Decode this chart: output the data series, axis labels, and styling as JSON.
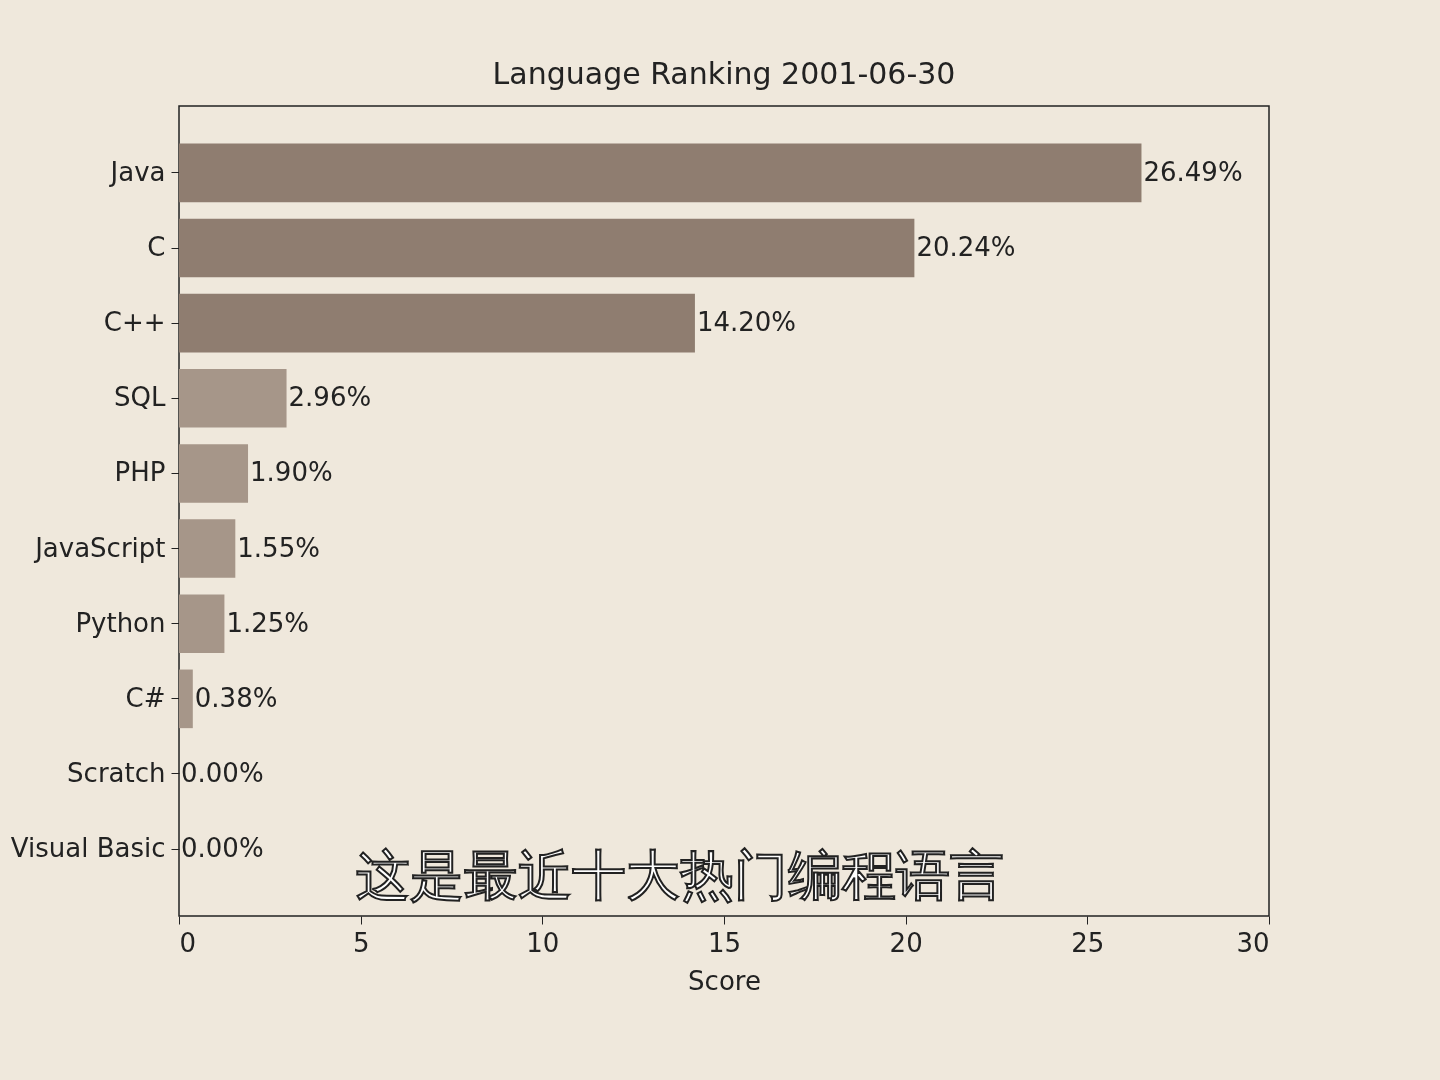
{
  "chart_data": {
    "type": "bar",
    "orientation": "horizontal",
    "title": "Language Ranking 2001-06-30",
    "xlabel": "Score",
    "categories": [
      "Java",
      "C",
      "C++",
      "SQL",
      "PHP",
      "JavaScript",
      "Python",
      "C#",
      "Scratch",
      "Visual Basic"
    ],
    "values": [
      26.49,
      20.24,
      14.2,
      2.96,
      1.9,
      1.55,
      1.25,
      0.38,
      0.0,
      0.0
    ],
    "value_labels": [
      "26.49%",
      "20.24%",
      "14.20%",
      "2.96%",
      "1.90%",
      "1.55%",
      "1.25%",
      "0.38%",
      "0.00%",
      "0.00%"
    ],
    "colors": [
      "#8f7d70",
      "#8f7d70",
      "#8f7d70",
      "#a69689",
      "#a69689",
      "#a69689",
      "#a69689",
      "#a69689",
      "#a69689",
      "#a69689"
    ],
    "xlim": [
      0,
      30
    ],
    "xticks": [
      0,
      5,
      10,
      15,
      20,
      25,
      30
    ],
    "annotations": [
      "这是最近十大热门编程语言"
    ]
  }
}
